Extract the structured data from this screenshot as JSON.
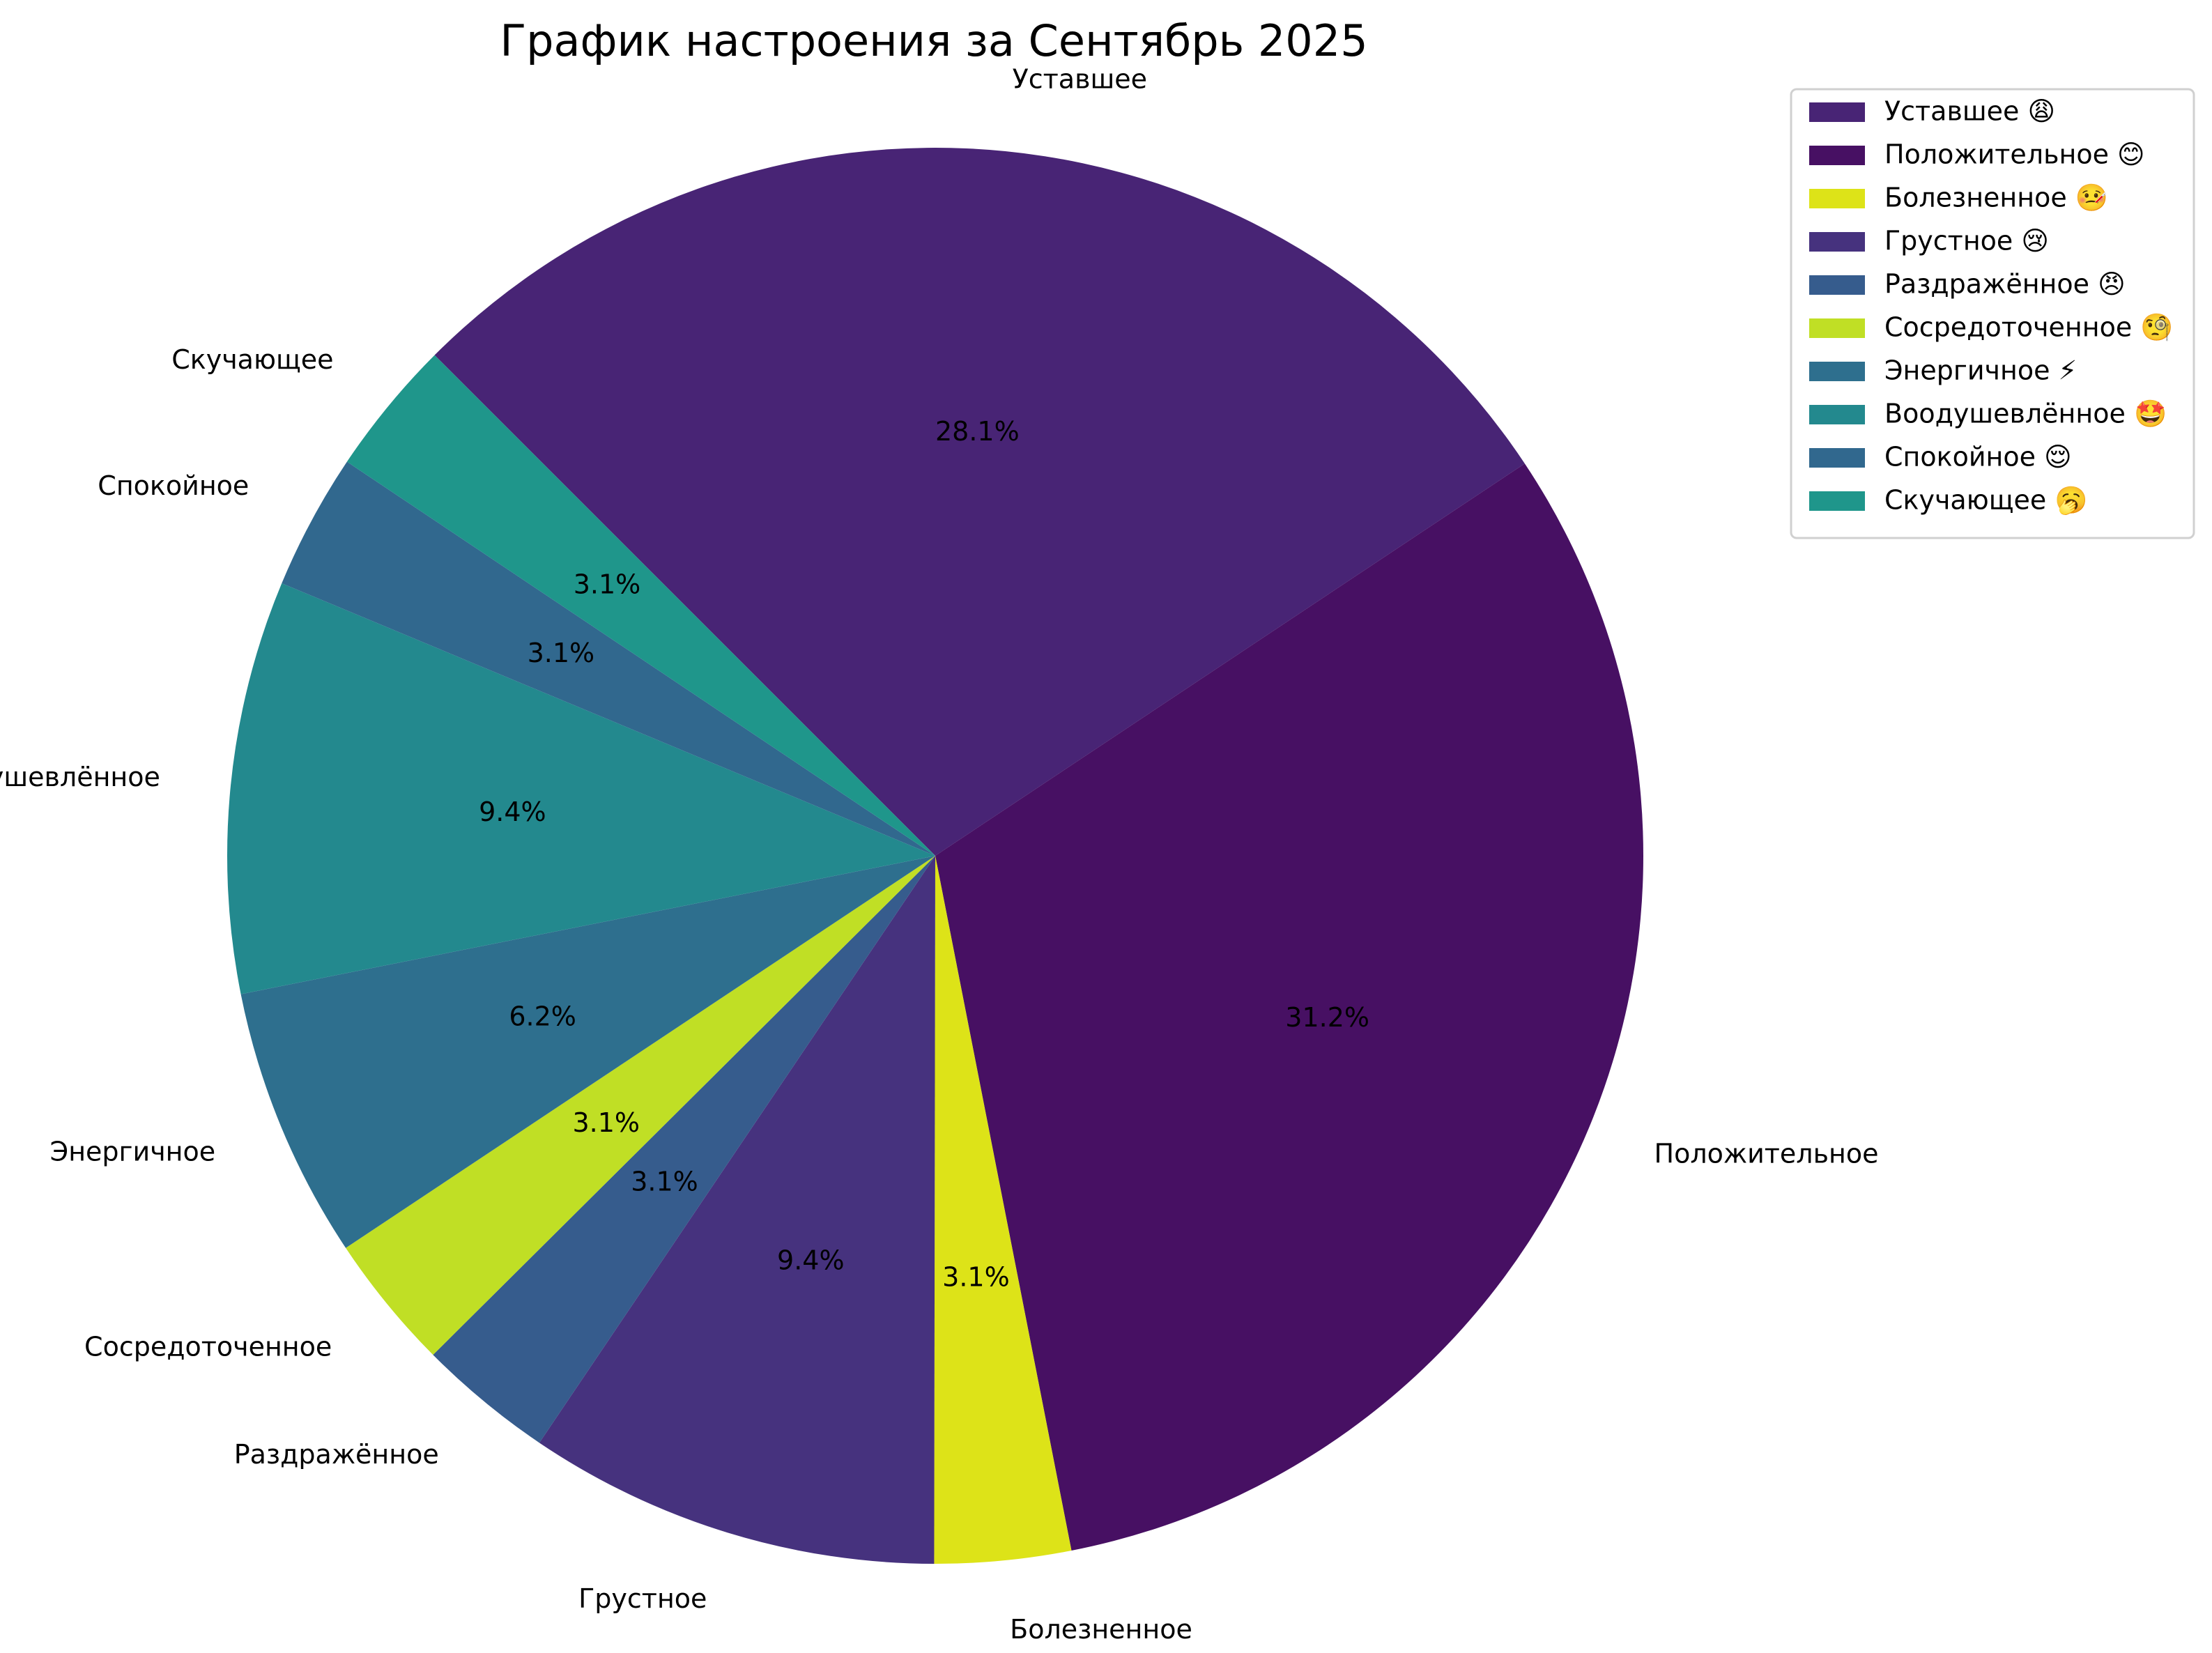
{
  "chart_data": {
    "type": "pie",
    "title": "График настроения за Сентябрь 2025",
    "slices": [
      {
        "label": "Уставшее",
        "legend": "Уставшее 😩",
        "value": 28.1,
        "display": "28.1%",
        "color": "#482475"
      },
      {
        "label": "Положительное",
        "legend": "Положительное 😊",
        "value": 31.2,
        "display": "31.2%",
        "color": "#471063"
      },
      {
        "label": "Болезненное",
        "legend": "Болезненное 🤒",
        "value": 3.1,
        "display": "3.1%",
        "color": "#dde318"
      },
      {
        "label": "Грустное",
        "legend": "Грустное 😢",
        "value": 9.4,
        "display": "9.4%",
        "color": "#46327e"
      },
      {
        "label": "Раздражённое",
        "legend": "Раздражённое 😠",
        "value": 3.1,
        "display": "3.1%",
        "color": "#365c8d"
      },
      {
        "label": "Сосредоточенное",
        "legend": "Сосредоточенное 🧐",
        "value": 3.1,
        "display": "3.1%",
        "color": "#c0df25"
      },
      {
        "label": "Энергичное",
        "legend": "Энергичное ⚡",
        "value": 6.2,
        "display": "6.2%",
        "color": "#2e6f8e"
      },
      {
        "label": "Воодушевлённое",
        "legend": "Воодушевлённое 🤩",
        "value": 9.4,
        "display": "9.4%",
        "color": "#23898e"
      },
      {
        "label": "Спокойное",
        "legend": "Спокойное 😌",
        "value": 3.1,
        "display": "3.1%",
        "color": "#31688e"
      },
      {
        "label": "Скучающее",
        "legend": "Скучающее 🥱",
        "value": 3.1,
        "display": "3.1%",
        "color": "#1f968b"
      }
    ],
    "legend_placement": "top-right",
    "counterclock": false
  }
}
